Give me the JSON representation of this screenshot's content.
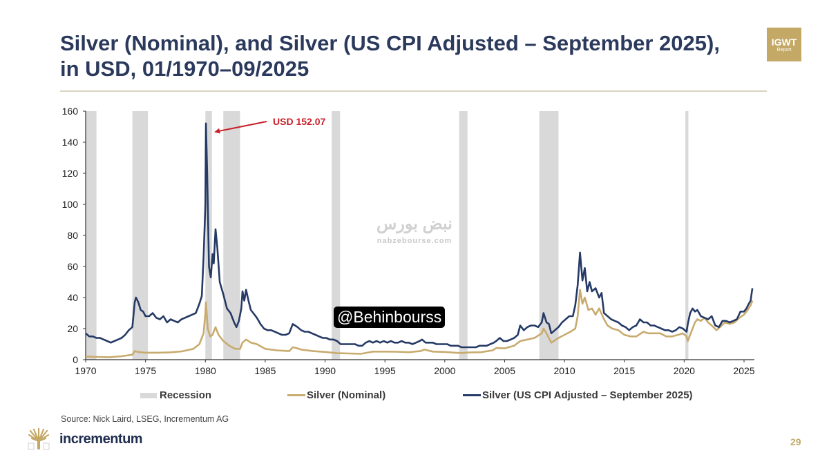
{
  "slide": {
    "title": "Silver (Nominal), and Silver (US CPI Adjusted – September 2025), in USD, 01/1970–09/2025",
    "badge_line1": "IGWT",
    "badge_line2": "Report",
    "source": "Source: Nick Laird, LSEG, Incrementum AG",
    "logo_text": "incrementum",
    "page_number": "29",
    "watermark_text": "نبض بورس",
    "watermark_url": "nabzebourse.com",
    "handle": "@Behinbourss",
    "colors": {
      "title": "#2b3a5c",
      "accent_gold": "#c3a866",
      "nominal": "#c8ab6e",
      "cpi_adjusted": "#263a66",
      "recession": "#d9d9d9",
      "annotation": "#c8202a"
    }
  },
  "chart_data": {
    "type": "line",
    "title": "Silver (Nominal), and Silver (US CPI Adjusted – September 2025), in USD, 01/1970–09/2025",
    "xlabel": "",
    "ylabel": "",
    "xlim": [
      1970,
      2025.75
    ],
    "ylim": [
      0,
      160
    ],
    "x_ticks": [
      1970,
      1975,
      1980,
      1985,
      1990,
      1995,
      2000,
      2005,
      2010,
      2015,
      2020,
      2025
    ],
    "y_ticks": [
      0,
      20,
      40,
      60,
      80,
      100,
      120,
      140,
      160
    ],
    "grid": false,
    "legend_position": "bottom",
    "legend": [
      "Recession",
      "Silver (Nominal)",
      "Silver (US CPI Adjusted – September 2025)"
    ],
    "annotation": {
      "text": "USD 152.07",
      "x": 1980.05,
      "y": 152.07
    },
    "recessions": [
      [
        1970.0,
        1970.9
      ],
      [
        1973.9,
        1975.2
      ],
      [
        1980.0,
        1980.55
      ],
      [
        1981.5,
        1982.9
      ],
      [
        1990.55,
        1991.25
      ],
      [
        2001.2,
        2001.9
      ],
      [
        2007.9,
        2009.5
      ],
      [
        2020.1,
        2020.35
      ]
    ],
    "series": [
      {
        "name": "Silver (US CPI Adjusted – September 2025)",
        "x": [
          1970.0,
          1970.3,
          1970.6,
          1970.9,
          1971.2,
          1971.5,
          1971.8,
          1972.1,
          1972.4,
          1972.7,
          1973.0,
          1973.3,
          1973.6,
          1973.9,
          1974.1,
          1974.2,
          1974.4,
          1974.6,
          1974.8,
          1975.0,
          1975.3,
          1975.6,
          1975.9,
          1976.2,
          1976.5,
          1976.8,
          1977.1,
          1977.4,
          1977.7,
          1978.0,
          1978.3,
          1978.6,
          1978.9,
          1979.2,
          1979.5,
          1979.7,
          1979.85,
          1980.0,
          1980.05,
          1980.15,
          1980.3,
          1980.45,
          1980.6,
          1980.7,
          1980.85,
          1981.0,
          1981.2,
          1981.5,
          1981.8,
          1982.1,
          1982.4,
          1982.6,
          1982.8,
          1983.0,
          1983.1,
          1983.25,
          1983.4,
          1983.6,
          1983.8,
          1984.0,
          1984.3,
          1984.6,
          1984.9,
          1985.2,
          1985.5,
          1985.8,
          1986.1,
          1986.4,
          1986.7,
          1987.0,
          1987.3,
          1987.5,
          1987.7,
          1988.0,
          1988.3,
          1988.6,
          1988.9,
          1989.2,
          1989.5,
          1989.8,
          1990.1,
          1990.4,
          1990.7,
          1991.0,
          1991.3,
          1991.6,
          1991.9,
          1992.2,
          1992.5,
          1992.8,
          1993.1,
          1993.4,
          1993.7,
          1994.0,
          1994.3,
          1994.6,
          1994.9,
          1995.2,
          1995.5,
          1995.8,
          1996.1,
          1996.4,
          1996.7,
          1997.0,
          1997.3,
          1997.6,
          1997.9,
          1998.1,
          1998.4,
          1998.7,
          1999.0,
          1999.3,
          1999.6,
          1999.9,
          2000.2,
          2000.5,
          2000.8,
          2001.1,
          2001.4,
          2001.7,
          2002.0,
          2002.3,
          2002.6,
          2002.9,
          2003.2,
          2003.5,
          2003.8,
          2004.1,
          2004.3,
          2004.6,
          2004.9,
          2005.2,
          2005.5,
          2005.8,
          2006.1,
          2006.3,
          2006.6,
          2006.9,
          2007.2,
          2007.5,
          2007.8,
          2008.1,
          2008.25,
          2008.5,
          2008.7,
          2008.9,
          2009.2,
          2009.5,
          2009.8,
          2010.1,
          2010.4,
          2010.7,
          2010.9,
          2011.1,
          2011.3,
          2011.5,
          2011.7,
          2011.9,
          2012.1,
          2012.3,
          2012.6,
          2012.9,
          2013.1,
          2013.3,
          2013.6,
          2013.9,
          2014.2,
          2014.5,
          2014.8,
          2015.1,
          2015.4,
          2015.7,
          2016.0,
          2016.3,
          2016.6,
          2016.9,
          2017.2,
          2017.5,
          2017.8,
          2018.1,
          2018.4,
          2018.7,
          2019.0,
          2019.3,
          2019.6,
          2019.9,
          2020.2,
          2020.3,
          2020.5,
          2020.7,
          2020.9,
          2021.1,
          2021.4,
          2021.7,
          2022.0,
          2022.3,
          2022.6,
          2022.9,
          2023.2,
          2023.5,
          2023.8,
          2024.1,
          2024.4,
          2024.7,
          2025.0,
          2025.2,
          2025.4,
          2025.55,
          2025.7
        ],
        "values": [
          17,
          15,
          15,
          14,
          14,
          13,
          12,
          11,
          12,
          13,
          14,
          16,
          19,
          21,
          37,
          40,
          37,
          32,
          31,
          28,
          28,
          30,
          27,
          26,
          28,
          24,
          26,
          25,
          24,
          26,
          27,
          28,
          29,
          30,
          36,
          41,
          66,
          100,
          152.07,
          120,
          60,
          53,
          68,
          62,
          84,
          72,
          50,
          42,
          33,
          30,
          24,
          21,
          25,
          33,
          44,
          38,
          45,
          38,
          32,
          30,
          27,
          23,
          20,
          19,
          19,
          18,
          17,
          16,
          16,
          17,
          23,
          22,
          21,
          19,
          18,
          18,
          17,
          16,
          15,
          14,
          14,
          13,
          13,
          12,
          10,
          10,
          10,
          10,
          10,
          9,
          9,
          11,
          12,
          11,
          12,
          11,
          12,
          11,
          12,
          11,
          11,
          12,
          11,
          11,
          10,
          11,
          12,
          13,
          11,
          11,
          11,
          10,
          10,
          10,
          10,
          9,
          9,
          9,
          8,
          8,
          8,
          8,
          8,
          9,
          9,
          9,
          10,
          11,
          12,
          14,
          12,
          12,
          13,
          14,
          16,
          22,
          19,
          21,
          22,
          22,
          21,
          24,
          30,
          24,
          23,
          17,
          19,
          21,
          24,
          26,
          28,
          28,
          35,
          48,
          69,
          51,
          59,
          44,
          50,
          44,
          46,
          40,
          43,
          30,
          28,
          26,
          25,
          24,
          22,
          21,
          19,
          21,
          22,
          26,
          24,
          24,
          22,
          22,
          21,
          20,
          19,
          19,
          18,
          19,
          21,
          20,
          18,
          23,
          30,
          33,
          31,
          32,
          28,
          27,
          26,
          28,
          22,
          21,
          25,
          25,
          24,
          25,
          26,
          31,
          31,
          33,
          36,
          38,
          46
        ]
      },
      {
        "name": "Silver (Nominal)",
        "x": [
          1970.0,
          1971.0,
          1972.0,
          1973.0,
          1973.9,
          1974.1,
          1974.4,
          1975.0,
          1976.0,
          1977.0,
          1978.0,
          1979.0,
          1979.5,
          1979.85,
          1980.0,
          1980.05,
          1980.2,
          1980.4,
          1980.6,
          1980.85,
          1981.1,
          1981.5,
          1982.0,
          1982.5,
          1982.9,
          1983.1,
          1983.4,
          1983.8,
          1984.3,
          1985.0,
          1986.0,
          1987.0,
          1987.3,
          1987.6,
          1988.0,
          1989.0,
          1990.0,
          1991.0,
          1992.0,
          1993.0,
          1993.5,
          1994.0,
          1995.0,
          1996.0,
          1997.0,
          1998.0,
          1998.3,
          1999.0,
          2000.0,
          2001.0,
          2001.5,
          2002.0,
          2003.0,
          2004.0,
          2004.3,
          2005.0,
          2005.8,
          2006.3,
          2006.9,
          2007.5,
          2008.1,
          2008.25,
          2008.5,
          2008.9,
          2009.5,
          2010.0,
          2010.5,
          2010.9,
          2011.1,
          2011.3,
          2011.5,
          2011.7,
          2012.0,
          2012.3,
          2012.6,
          2012.9,
          2013.3,
          2013.6,
          2014.0,
          2014.5,
          2015.0,
          2015.5,
          2016.0,
          2016.6,
          2017.0,
          2017.5,
          2018.0,
          2018.5,
          2019.0,
          2019.5,
          2019.9,
          2020.2,
          2020.3,
          2020.6,
          2020.9,
          2021.1,
          2021.4,
          2021.7,
          2022.0,
          2022.3,
          2022.7,
          2023.0,
          2023.4,
          2023.8,
          2024.2,
          2024.6,
          2025.0,
          2025.3,
          2025.55,
          2025.7
        ],
        "values": [
          2,
          1.8,
          1.6,
          2.2,
          3.2,
          5.5,
          5,
          4.5,
          4.5,
          4.7,
          5.3,
          7,
          10,
          17,
          30,
          37,
          20,
          15,
          16,
          21,
          16,
          12,
          9,
          7,
          7,
          11,
          13,
          11,
          10,
          7,
          6,
          5.5,
          8,
          7.5,
          6.5,
          5.5,
          5,
          4.2,
          4,
          3.8,
          4.5,
          5.2,
          5.2,
          5.1,
          4.8,
          5.6,
          6.5,
          5.2,
          5,
          4.4,
          4.3,
          4.6,
          4.8,
          6,
          7.5,
          7.3,
          9,
          12,
          13,
          14,
          17,
          20,
          17,
          11,
          14,
          16,
          18,
          20,
          28,
          45,
          36,
          40,
          32,
          33,
          29,
          33,
          26,
          22,
          20,
          19,
          16,
          15,
          15,
          18,
          17,
          17,
          17,
          15,
          15,
          16,
          17,
          15,
          12,
          18,
          24,
          26,
          25,
          27,
          24,
          22,
          19,
          21,
          24,
          23,
          24,
          27,
          29,
          32,
          35,
          38
        ]
      }
    ]
  }
}
